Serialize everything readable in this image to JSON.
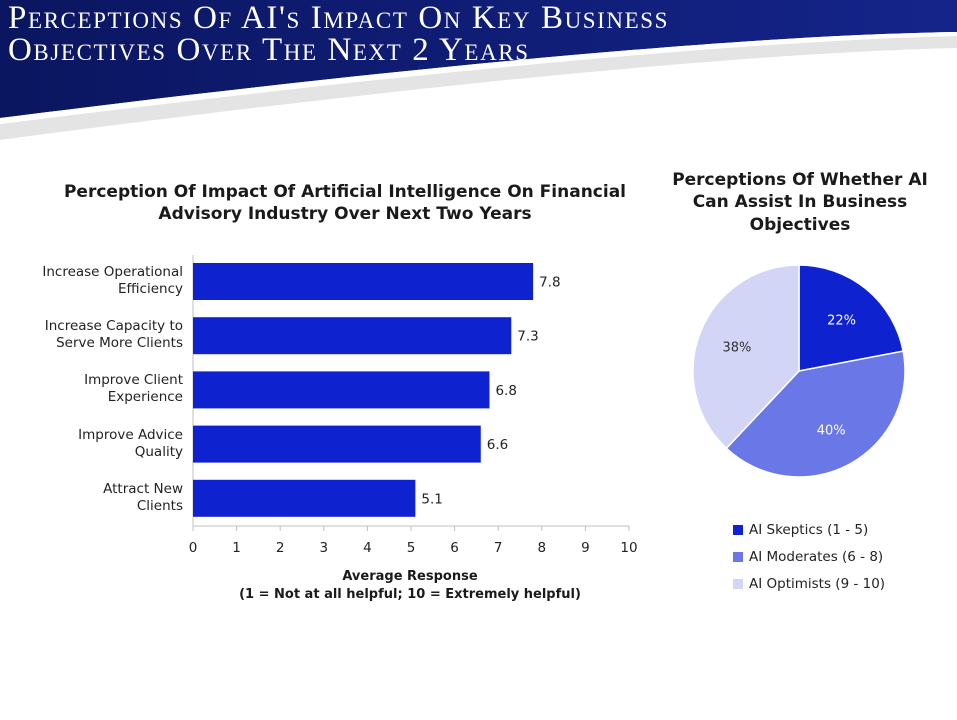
{
  "slide": {
    "title_line_1": "Perceptions Of AI's Impact On Key Business",
    "title_line_2": "Objectives Over The Next 2 Years"
  },
  "colors": {
    "banner": "#0d1a6e",
    "bar": "#0f22d0",
    "skeptics": "#0f22d0",
    "moderates": "#6a77e6",
    "optimists": "#d2d5f5"
  },
  "chart_data": [
    {
      "type": "bar",
      "orientation": "horizontal",
      "title": "Perception Of Impact Of Artificial Intelligence On Financial Advisory Industry Over Next Two Years",
      "categories": [
        [
          "Increase Operational",
          "Efficiency"
        ],
        [
          "Increase Capacity to",
          "Serve More Clients"
        ],
        [
          "Improve Client",
          "Experience"
        ],
        [
          "Improve Advice",
          "Quality"
        ],
        [
          "Attract New",
          "Clients"
        ]
      ],
      "values": [
        7.8,
        7.3,
        6.8,
        6.6,
        5.1
      ],
      "data_labels": [
        "7.8",
        "7.3",
        "6.8",
        "6.6",
        "5.1"
      ],
      "xlabel": [
        "Average Response",
        "(1 = Not at all helpful; 10 = Extremely helpful)"
      ],
      "xlim": [
        0,
        10
      ],
      "xticks": [
        "0",
        "1",
        "2",
        "3",
        "4",
        "5",
        "6",
        "7",
        "8",
        "9",
        "10"
      ],
      "grid": false
    },
    {
      "type": "pie",
      "title": "Perceptions Of Whether AI Can Assist In Business Objectives",
      "slices": [
        {
          "name": "AI Skeptics (1 - 5)",
          "value": 22,
          "label": "22%"
        },
        {
          "name": "AI Moderates (6 - 8)",
          "value": 40,
          "label": "40%"
        },
        {
          "name": "AI Optimists (9 - 10)",
          "value": 38,
          "label": "38%"
        }
      ],
      "legend_position": "bottom"
    }
  ]
}
